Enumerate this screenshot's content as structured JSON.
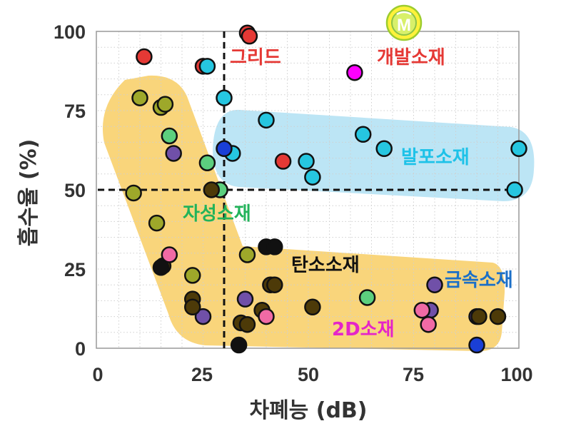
{
  "chart_data": {
    "type": "scatter",
    "xlabel": "차폐능 (dB)",
    "ylabel": "흡수율 (%)",
    "xlim": [
      0,
      100
    ],
    "ylim": [
      0,
      100
    ],
    "x_ticks": [
      "0",
      "25",
      "50",
      "75",
      "100"
    ],
    "y_ticks": [
      "0",
      "25",
      "50",
      "75",
      "100"
    ],
    "grid": "dotted minor",
    "reference_lines": {
      "x": 30,
      "y": 50
    },
    "logo_text": "M",
    "colors": {
      "grid": "#e53935",
      "develop": "#ff00ff",
      "foam": "#26c6e0",
      "magnetic": "#5ccf7e",
      "carbon": "#111111",
      "twod": "#7050a8",
      "metal": "#1a3fd6",
      "olive": "#9ea82a",
      "brown": "#4d3a08",
      "pink": "#f06aa5",
      "cyan": "#22c3e6",
      "region_yellow": "#f6c343",
      "region_blue": "#8fd3ef"
    },
    "regions": [
      {
        "id": "yellow",
        "color": "#f6c343"
      },
      {
        "id": "blue",
        "color": "#8fd3ef"
      }
    ],
    "labels": [
      {
        "text": "그리드",
        "color": "#e53935"
      },
      {
        "text": "개발소재",
        "color": "#e53935"
      },
      {
        "text": "발포소재",
        "color": "#1ec2e8"
      },
      {
        "text": "자성소재",
        "color": "#22b35a"
      },
      {
        "text": "탄소소재",
        "color": "#111111"
      },
      {
        "text": "금속소재",
        "color": "#1b6fc7"
      },
      {
        "text": "2D소재",
        "color": "#e524c8"
      }
    ],
    "series": [
      {
        "color": "#e53935",
        "points": [
          [
            11,
            92
          ],
          [
            25,
            89
          ],
          [
            35.5,
            99.5
          ],
          [
            36,
            98.5
          ],
          [
            44,
            59
          ]
        ]
      },
      {
        "color": "#ff00ff",
        "points": [
          [
            61,
            87
          ]
        ]
      },
      {
        "color": "#26c6e0",
        "points": [
          [
            26,
            89
          ],
          [
            30,
            79
          ],
          [
            40,
            72
          ],
          [
            63,
            67.5
          ],
          [
            68,
            63
          ],
          [
            49.5,
            59
          ],
          [
            51,
            54
          ],
          [
            32,
            61.5
          ],
          [
            100,
            63
          ],
          [
            99,
            50
          ]
        ]
      },
      {
        "color": "#1a3fd6",
        "points": [
          [
            30,
            63
          ],
          [
            90,
            1
          ]
        ]
      },
      {
        "color": "#5ccf7e",
        "points": [
          [
            17,
            67
          ],
          [
            26,
            58.5
          ],
          [
            29,
            50
          ],
          [
            64,
            16
          ]
        ]
      },
      {
        "color": "#9ea82a",
        "points": [
          [
            10,
            79
          ],
          [
            15,
            76
          ],
          [
            16,
            77
          ],
          [
            8.5,
            49
          ],
          [
            14,
            39.5
          ],
          [
            22.5,
            23
          ],
          [
            35.5,
            29.5
          ]
        ]
      },
      {
        "color": "#7050a8",
        "points": [
          [
            18,
            61.5
          ],
          [
            25,
            10
          ],
          [
            35,
            15.5
          ],
          [
            80,
            20
          ],
          [
            90,
            10
          ],
          [
            79,
            12
          ]
        ]
      },
      {
        "color": "#4d3a08",
        "points": [
          [
            27,
            50
          ],
          [
            15.5,
            26
          ],
          [
            22.5,
            15.5
          ],
          [
            22.5,
            13
          ],
          [
            34,
            8
          ],
          [
            35.5,
            7.5
          ],
          [
            39,
            12
          ],
          [
            41,
            20
          ],
          [
            42,
            20
          ],
          [
            51,
            13
          ],
          [
            90.5,
            10
          ],
          [
            95,
            10
          ]
        ]
      },
      {
        "color": "#111111",
        "points": [
          [
            33.5,
            1
          ],
          [
            40,
            32
          ],
          [
            42,
            32
          ],
          [
            15,
            25.5
          ]
        ]
      },
      {
        "color": "#f06aa5",
        "points": [
          [
            17,
            29.5
          ],
          [
            40,
            10
          ],
          [
            77,
            12
          ],
          [
            78.5,
            7.5
          ]
        ]
      }
    ]
  }
}
